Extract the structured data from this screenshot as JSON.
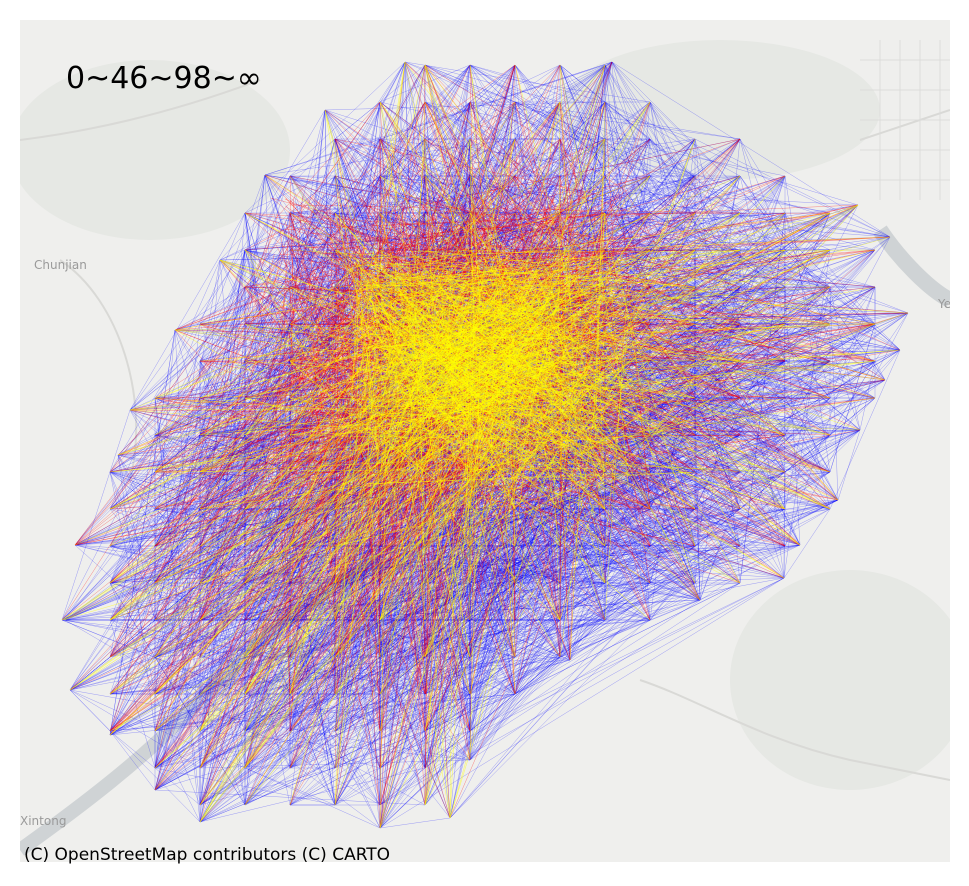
{
  "legend": {
    "label": "0~46~98~∞"
  },
  "attribution": "(C) OpenStreetMap contributors (C) CARTO",
  "place_labels": {
    "chunjian": "Chunjian",
    "xintong": "Xintong",
    "ye": "Ye"
  },
  "colors": {
    "background": "#ffffff",
    "basemap": "#efefed",
    "road": "#d9d9d6",
    "water": "#cfd3d5",
    "flow_low": "#0000ff",
    "flow_mid": "#ff0000",
    "flow_high": "#ffff00"
  }
}
